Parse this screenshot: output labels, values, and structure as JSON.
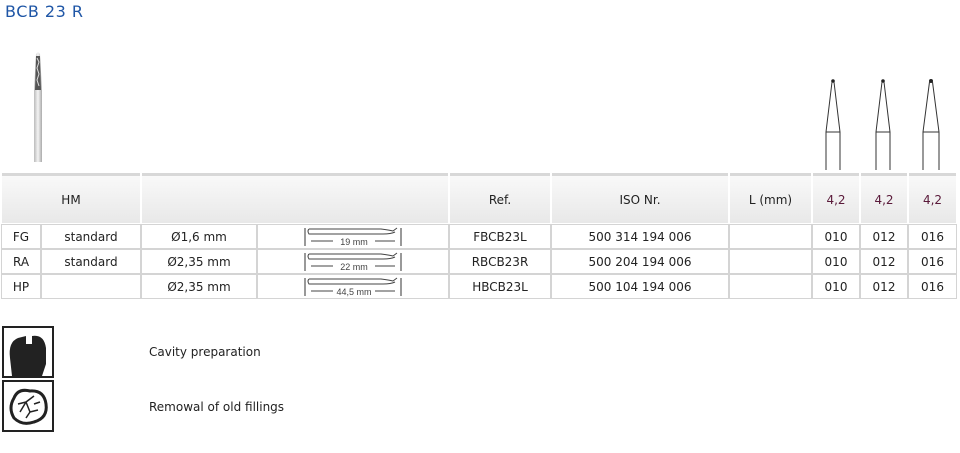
{
  "title": "BCB 23 R",
  "table": {
    "header": {
      "material": "HM",
      "ref": "Ref.",
      "iso": "ISO Nr.",
      "length": "L (mm)",
      "sizes": [
        "4,2",
        "4,2",
        "4,2"
      ]
    },
    "rows": [
      {
        "type": "FG",
        "variant": "standard",
        "diameter": "Ø1,6 mm",
        "shank_length": "19 mm",
        "ref": "FBCB23L",
        "iso": "500 314 194 006",
        "length": "",
        "sizes": [
          "010",
          "012",
          "016"
        ]
      },
      {
        "type": "RA",
        "variant": "standard",
        "diameter": "Ø2,35 mm",
        "shank_length": "22 mm",
        "ref": "RBCB23R",
        "iso": "500 204 194 006",
        "length": "",
        "sizes": [
          "010",
          "012",
          "016"
        ]
      },
      {
        "type": "HP",
        "variant": "",
        "diameter": "Ø2,35 mm",
        "shank_length": "44,5 mm",
        "ref": "HBCB23L",
        "iso": "500 104 194 006",
        "length": "",
        "sizes": [
          "010",
          "012",
          "016"
        ]
      }
    ]
  },
  "legend": [
    {
      "icon": "cavity-preparation-icon",
      "label": "Cavity preparation"
    },
    {
      "icon": "old-fillings-removal-icon",
      "label": "Remowal of old fillings"
    }
  ]
}
